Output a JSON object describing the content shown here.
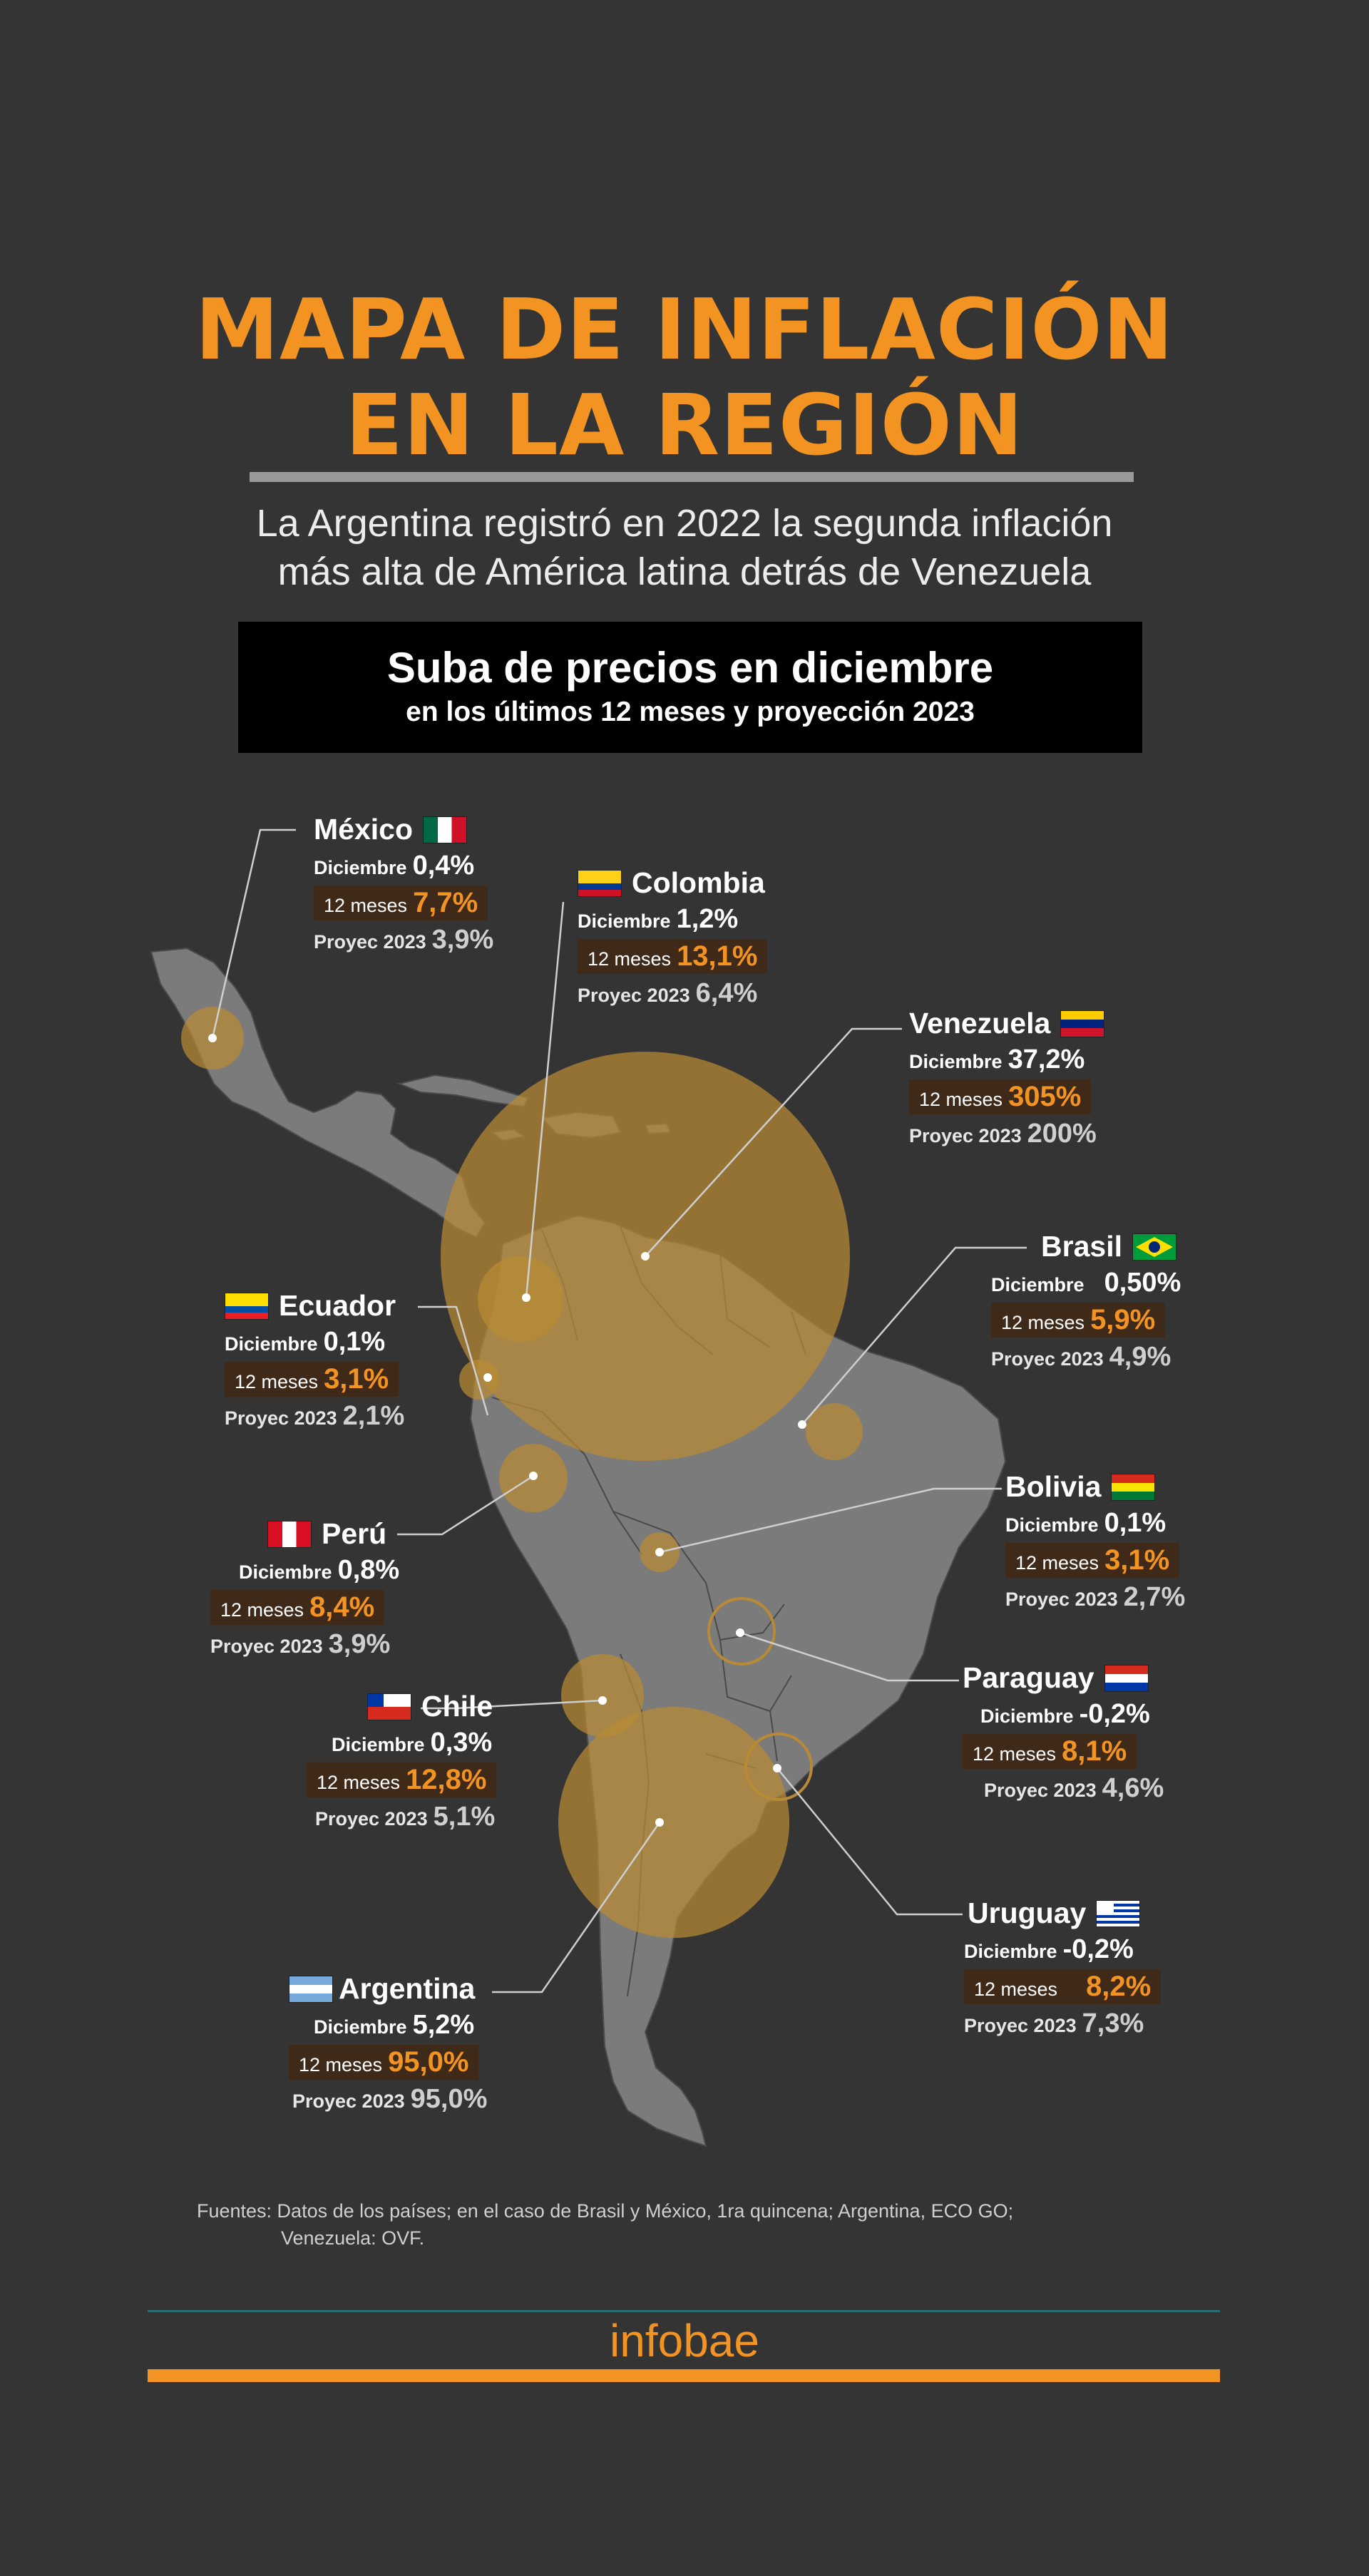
{
  "title": {
    "line1": "MAPA DE INFLACIÓN",
    "line2": "EN LA REGIÓN"
  },
  "subtitle": {
    "line1": "La Argentina registró en 2022 la segunda inflación",
    "line2": "más alta de América latina detrás de Venezuela"
  },
  "heading": {
    "line1": "Suba de precios en diciembre",
    "line2": "en los últimos 12 meses y proyección 2023"
  },
  "labels": {
    "dic": "Diciembre",
    "m12": "12 meses",
    "proy": "Proyec 2023"
  },
  "countries": [
    {
      "id": "mexico",
      "name": "México",
      "diciembre": "0,4%",
      "doce_meses": "7,7%",
      "proyec_2023": "3,9%"
    },
    {
      "id": "colombia",
      "name": "Colombia",
      "diciembre": "1,2%",
      "doce_meses": "13,1%",
      "proyec_2023": "6,4%"
    },
    {
      "id": "venezuela",
      "name": "Venezuela",
      "diciembre": "37,2%",
      "doce_meses": "305%",
      "proyec_2023": "200%"
    },
    {
      "id": "brasil",
      "name": "Brasil",
      "diciembre": "0,50%",
      "doce_meses": "5,9%",
      "proyec_2023": "4,9%"
    },
    {
      "id": "ecuador",
      "name": "Ecuador",
      "diciembre": "0,1%",
      "doce_meses": "3,1%",
      "proyec_2023": "2,1%"
    },
    {
      "id": "bolivia",
      "name": "Bolivia",
      "diciembre": "0,1%",
      "doce_meses": "3,1%",
      "proyec_2023": "2,7%"
    },
    {
      "id": "peru",
      "name": "Perú",
      "diciembre": "0,8%",
      "doce_meses": "8,4%",
      "proyec_2023": "3,9%"
    },
    {
      "id": "paraguay",
      "name": "Paraguay",
      "diciembre": "-0,2%",
      "doce_meses": "8,1%",
      "proyec_2023": "4,6%"
    },
    {
      "id": "chile",
      "name": "Chile",
      "diciembre": "0,3%",
      "doce_meses": "12,8%",
      "proyec_2023": "5,1%"
    },
    {
      "id": "uruguay",
      "name": "Uruguay",
      "diciembre": "-0,2%",
      "doce_meses": "8,2%",
      "proyec_2023": "7,3%"
    },
    {
      "id": "argentina",
      "name": "Argentina",
      "diciembre": "5,2%",
      "doce_meses": "95,0%",
      "proyec_2023": "95,0%"
    }
  ],
  "sources": {
    "line1": "Fuentes: Datos de los países; en el caso de Brasil y México, 1ra quincena; Argentina, ECO GO;",
    "line2": "Venezuela: OVF."
  },
  "logo": "infobae",
  "colors": {
    "background": "#333433",
    "accent": "#f39322",
    "bubble": "#b98a35",
    "land": "#7b7b7b"
  }
}
